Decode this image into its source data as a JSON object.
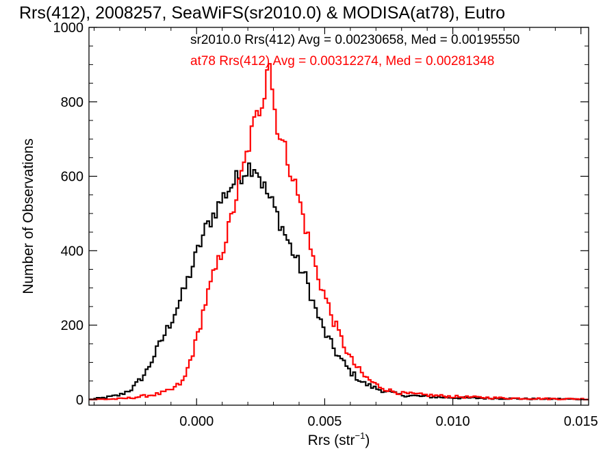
{
  "chart_data": {
    "type": "line",
    "title": "Rrs(412), 2008257, SeaWiFS(sr2010.0) & MODISA(at78), Eutro",
    "xlabel": "Rrs (str",
    "xlabel_sup": "−1",
    "xlabel_close": ")",
    "ylabel": "Number of Observations",
    "xlim": [
      -0.0042,
      0.0153
    ],
    "ylim": [
      -15,
      1000
    ],
    "x_ticks": [
      0.0,
      0.005,
      0.01,
      0.015
    ],
    "x_tick_labels": [
      "0.000",
      "0.005",
      "0.010",
      "0.015"
    ],
    "y_ticks": [
      0,
      200,
      400,
      600,
      800,
      1000
    ],
    "y_tick_labels": [
      "0",
      "200",
      "400",
      "600",
      "800",
      "1000"
    ],
    "grid": false,
    "legend_position": "top-right",
    "bin_width": 0.0001,
    "series": [
      {
        "name": "sr2010.0 Rrs(412) Avg = 0.00230658, Med = 0.00195550",
        "color": "#000000",
        "points": [
          [
            -0.0042,
            0
          ],
          [
            -0.0036,
            5
          ],
          [
            -0.003,
            12
          ],
          [
            -0.0025,
            30
          ],
          [
            -0.002,
            70
          ],
          [
            -0.0015,
            140
          ],
          [
            -0.001,
            210
          ],
          [
            -0.0005,
            290
          ],
          [
            0.0,
            390
          ],
          [
            0.0003,
            450
          ],
          [
            0.0006,
            490
          ],
          [
            0.001,
            540
          ],
          [
            0.0013,
            570
          ],
          [
            0.0016,
            595
          ],
          [
            0.002,
            625
          ],
          [
            0.0023,
            630
          ],
          [
            0.0026,
            575
          ],
          [
            0.003,
            520
          ],
          [
            0.0033,
            470
          ],
          [
            0.0036,
            420
          ],
          [
            0.004,
            360
          ],
          [
            0.0043,
            320
          ],
          [
            0.0046,
            250
          ],
          [
            0.005,
            180
          ],
          [
            0.0055,
            120
          ],
          [
            0.006,
            75
          ],
          [
            0.0065,
            45
          ],
          [
            0.007,
            30
          ],
          [
            0.0075,
            20
          ],
          [
            0.008,
            12
          ],
          [
            0.009,
            8
          ],
          [
            0.01,
            5
          ],
          [
            0.011,
            4
          ],
          [
            0.012,
            3
          ],
          [
            0.013,
            2
          ],
          [
            0.014,
            2
          ],
          [
            0.015,
            1
          ],
          [
            0.0153,
            1
          ]
        ]
      },
      {
        "name": "at78 Rrs(412) Avg = 0.00312274, Med = 0.00281348",
        "color": "#ff0000",
        "points": [
          [
            -0.0042,
            0
          ],
          [
            -0.003,
            2
          ],
          [
            -0.0025,
            5
          ],
          [
            -0.002,
            10
          ],
          [
            -0.0015,
            15
          ],
          [
            -0.001,
            25
          ],
          [
            -0.0005,
            50
          ],
          [
            0.0,
            160
          ],
          [
            0.0003,
            250
          ],
          [
            0.0006,
            320
          ],
          [
            0.001,
            400
          ],
          [
            0.0013,
            470
          ],
          [
            0.0016,
            560
          ],
          [
            0.0019,
            640
          ],
          [
            0.0022,
            730
          ],
          [
            0.0025,
            790
          ],
          [
            0.0027,
            850
          ],
          [
            0.0028,
            955
          ],
          [
            0.0029,
            870
          ],
          [
            0.003,
            800
          ],
          [
            0.0032,
            720
          ],
          [
            0.0035,
            660
          ],
          [
            0.0038,
            590
          ],
          [
            0.0041,
            510
          ],
          [
            0.0044,
            420
          ],
          [
            0.0047,
            340
          ],
          [
            0.005,
            280
          ],
          [
            0.0053,
            220
          ],
          [
            0.0056,
            170
          ],
          [
            0.006,
            110
          ],
          [
            0.0065,
            65
          ],
          [
            0.007,
            40
          ],
          [
            0.0075,
            25
          ],
          [
            0.008,
            17
          ],
          [
            0.009,
            12
          ],
          [
            0.01,
            8
          ],
          [
            0.011,
            6
          ],
          [
            0.012,
            4
          ],
          [
            0.013,
            3
          ],
          [
            0.014,
            2
          ],
          [
            0.015,
            2
          ],
          [
            0.0153,
            1
          ]
        ]
      }
    ]
  }
}
